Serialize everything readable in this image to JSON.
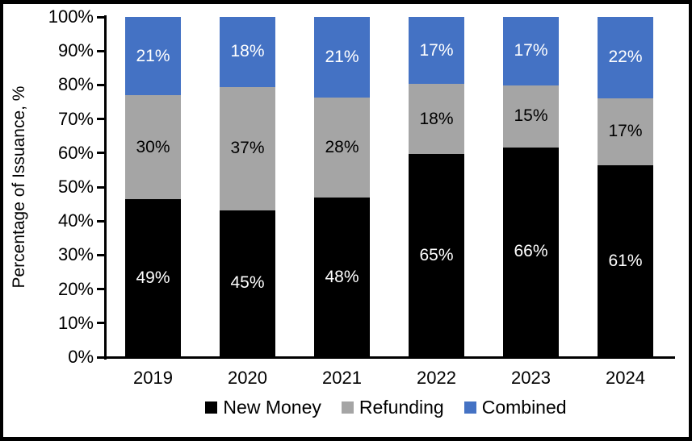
{
  "chart_data": {
    "type": "bar",
    "stacked": true,
    "percent_stacked": true,
    "ylabel": "Percentage of Issuance, %",
    "categories": [
      "2019",
      "2020",
      "2021",
      "2022",
      "2023",
      "2024"
    ],
    "series": [
      {
        "name": "New Money",
        "color": "#000000",
        "label_color": "#FFFFFF",
        "values": [
          49,
          45,
          48,
          65,
          66,
          61
        ]
      },
      {
        "name": "Refunding",
        "color": "#A5A5A5",
        "label_color": "#000000",
        "values": [
          30,
          37,
          28,
          18,
          15,
          17
        ]
      },
      {
        "name": "Combined",
        "color": "#4472C4",
        "label_color": "#FFFFFF",
        "values": [
          21,
          18,
          21,
          17,
          17,
          22
        ]
      }
    ],
    "value_suffix": "%",
    "y_ticks": [
      "0%",
      "10%",
      "20%",
      "30%",
      "40%",
      "50%",
      "60%",
      "70%",
      "80%",
      "90%",
      "100%"
    ],
    "ylim": [
      0,
      100
    ],
    "grid": false,
    "legend_position": "bottom"
  }
}
